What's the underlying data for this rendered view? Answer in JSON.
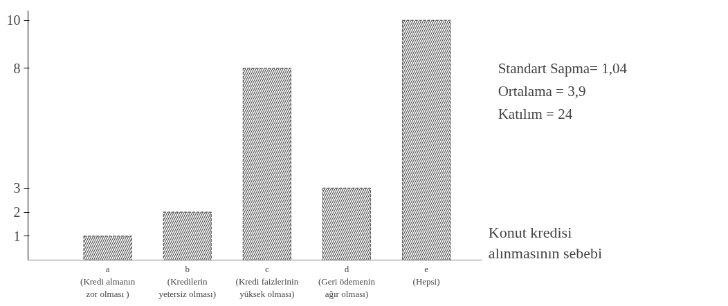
{
  "chart_data": {
    "type": "bar",
    "categories": [
      "a\n(Kredi almanın\nzor olması )",
      "b\n(Kredilerin\nyetersiz olması)",
      "c\n(Kredi faizlerinin\nyüksek olması)",
      "d\n(Geri ödemenin\nağır olması)",
      "e\n(Hepsi)"
    ],
    "values": [
      1,
      2,
      8,
      3,
      10
    ],
    "color": "#555555",
    "xlabel": "Konut kredisi\nalınmasının sebebi",
    "ylim": [
      0,
      10.4
    ],
    "yticks": [
      1,
      2,
      3,
      8,
      10
    ],
    "grid": false,
    "line_style": "dashed",
    "annotations": [
      "Standart Sapma= 1,04",
      "Ortalama          = 3,9",
      "Katılım            = 24"
    ]
  }
}
